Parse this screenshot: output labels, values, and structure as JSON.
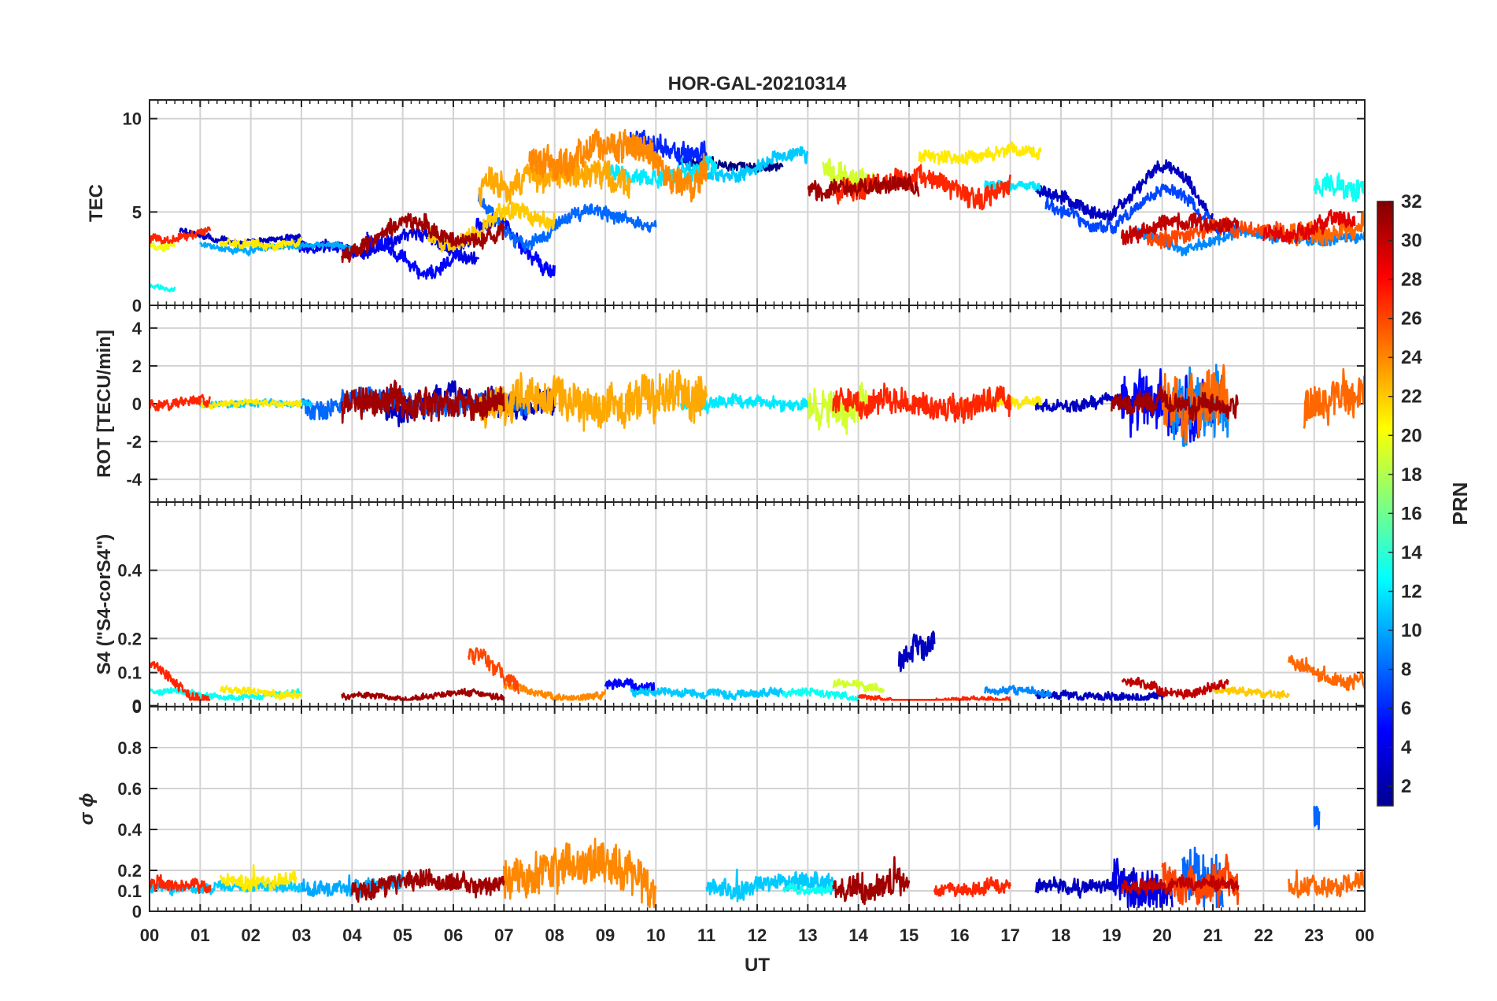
{
  "chart_data": {
    "type": "line",
    "title": "HOR-GAL-20210314",
    "xlabel": "UT",
    "x_ticks": [
      "00",
      "01",
      "02",
      "03",
      "04",
      "05",
      "06",
      "07",
      "08",
      "09",
      "10",
      "11",
      "12",
      "13",
      "14",
      "15",
      "16",
      "17",
      "18",
      "19",
      "20",
      "21",
      "22",
      "23",
      "00"
    ],
    "xlim": [
      0,
      24
    ],
    "grid": true,
    "colorbar": {
      "label": "PRN",
      "ticks": [
        "2",
        "4",
        "6",
        "8",
        "10",
        "12",
        "14",
        "16",
        "18",
        "20",
        "22",
        "24",
        "26",
        "28",
        "30",
        "32"
      ],
      "range": [
        1,
        32
      ],
      "colormap": "jet"
    },
    "panels": [
      {
        "ylabel": "TEC",
        "ylim": [
          0,
          11
        ],
        "yticks": [
          "0",
          "5",
          "10"
        ],
        "ytick_values": [
          0,
          5,
          10
        ],
        "series": [
          {
            "prn": 1,
            "hours": [
              10.5,
              12.5
            ],
            "level": 7.6,
            "amp": 0.6,
            "noise": 0.2
          },
          {
            "prn": 3,
            "hours": [
              0.6,
              3.0
            ],
            "level": 3.6,
            "amp": 0.4,
            "noise": 0.15
          },
          {
            "prn": 3,
            "hours": [
              17.5,
              21.0
            ],
            "level": 5.8,
            "amp": 1.8,
            "noise": 0.3
          },
          {
            "prn": 4,
            "hours": [
              2.7,
              6.5
            ],
            "level": 3.2,
            "amp": 0.9,
            "noise": 0.3
          },
          {
            "prn": 5,
            "hours": [
              4.3,
              8.0
            ],
            "level": 3.0,
            "amp": 1.6,
            "noise": 0.35
          },
          {
            "prn": 6,
            "hours": [
              9.5,
              11.0
            ],
            "level": 8.5,
            "amp": 1.0,
            "noise": 0.5
          },
          {
            "prn": 7,
            "hours": [
              17.7,
              21.5
            ],
            "level": 5.0,
            "amp": 1.2,
            "noise": 0.3
          },
          {
            "prn": 8,
            "hours": [
              6.5,
              10.0
            ],
            "level": 4.5,
            "amp": 1.5,
            "noise": 0.3
          },
          {
            "prn": 9,
            "hours": [
              19.5,
              24.0
            ],
            "level": 3.6,
            "amp": 0.5,
            "noise": 0.25
          },
          {
            "prn": 10,
            "hours": [
              1.0,
              4.0
            ],
            "level": 3.1,
            "amp": 0.5,
            "noise": 0.15
          },
          {
            "prn": 11,
            "hours": [
              10.5,
              13.0
            ],
            "level": 7.4,
            "amp": 0.8,
            "noise": 0.3
          },
          {
            "prn": 12,
            "hours": [
              9.0,
              11.2
            ],
            "level": 7.0,
            "amp": 0.8,
            "noise": 0.4
          },
          {
            "prn": 12,
            "hours": [
              16.5,
              17.6
            ],
            "level": 6.5,
            "amp": 0.3,
            "noise": 0.2
          },
          {
            "prn": 13,
            "hours": [
              23.0,
              24.0
            ],
            "level": 6.5,
            "amp": 1.0,
            "noise": 0.5
          },
          {
            "prn": 13,
            "hours": [
              0.0,
              0.5
            ],
            "level": 1.0,
            "amp": 0.4,
            "noise": 0.1
          },
          {
            "prn": 19,
            "hours": [
              13.3,
              14.3
            ],
            "level": 7.5,
            "amp": 1.5,
            "noise": 0.6
          },
          {
            "prn": 20,
            "hours": [
              0.0,
              0.5
            ],
            "level": 3.2,
            "amp": 0.3,
            "noise": 0.2
          },
          {
            "prn": 21,
            "hours": [
              1.4,
              3.0
            ],
            "level": 3.3,
            "amp": 0.3,
            "noise": 0.2
          },
          {
            "prn": 21,
            "hours": [
              15.2,
              17.6
            ],
            "level": 8.0,
            "amp": 0.4,
            "noise": 0.3
          },
          {
            "prn": 22,
            "hours": [
              5.5,
              8.0
            ],
            "level": 4.5,
            "amp": 1.5,
            "noise": 0.4
          },
          {
            "prn": 23,
            "hours": [
              6.5,
              9.5
            ],
            "level": 7.0,
            "amp": 1.5,
            "noise": 0.7
          },
          {
            "prn": 24,
            "hours": [
              7.5,
              11.0
            ],
            "level": 8.0,
            "amp": 1.5,
            "noise": 0.7
          },
          {
            "prn": 25,
            "hours": [
              22.5,
              24.0
            ],
            "level": 4.0,
            "amp": 0.8,
            "noise": 0.5
          },
          {
            "prn": 26,
            "hours": [
              19.7,
              22.5
            ],
            "level": 4.0,
            "amp": 0.8,
            "noise": 0.4
          },
          {
            "prn": 27,
            "hours": [
              0.0,
              1.2
            ],
            "level": 3.8,
            "amp": 1.0,
            "noise": 0.2
          },
          {
            "prn": 27,
            "hours": [
              13.5,
              17.0
            ],
            "level": 6.5,
            "amp": 1.2,
            "noise": 0.5
          },
          {
            "prn": 29,
            "hours": [
              22.0,
              23.8
            ],
            "level": 4.0,
            "amp": 0.8,
            "noise": 0.4
          },
          {
            "prn": 30,
            "hours": [
              19.2,
              21.5
            ],
            "level": 4.3,
            "amp": 0.7,
            "noise": 0.4
          },
          {
            "prn": 31,
            "hours": [
              3.8,
              7.0
            ],
            "level": 3.8,
            "amp": 1.0,
            "noise": 0.4
          },
          {
            "prn": 31,
            "hours": [
              13.0,
              15.2
            ],
            "level": 6.3,
            "amp": 0.7,
            "noise": 0.4
          }
        ]
      },
      {
        "ylabel": "ROT [TECU/min]",
        "ylim": [
          -5.2,
          5.2
        ],
        "yticks": [
          "-4",
          "-2",
          "0",
          "2",
          "4"
        ],
        "ytick_values": [
          -4,
          -2,
          0,
          2,
          4
        ],
        "series": [
          {
            "prn": 3,
            "hours": [
              4.5,
              8.0
            ],
            "level": 0,
            "amp": 0.4,
            "noise": 0.6
          },
          {
            "prn": 3,
            "hours": [
              17.5,
              19.5
            ],
            "level": 0,
            "amp": 0.2,
            "noise": 0.3
          },
          {
            "prn": 5,
            "hours": [
              19.2,
              21.0
            ],
            "level": 0,
            "amp": 0.5,
            "noise": 1.4
          },
          {
            "prn": 8,
            "hours": [
              3.0,
              7.5
            ],
            "level": 0,
            "amp": 0.3,
            "noise": 0.5
          },
          {
            "prn": 9,
            "hours": [
              20.2,
              21.3
            ],
            "level": 0,
            "amp": 0.5,
            "noise": 1.6
          },
          {
            "prn": 11,
            "hours": [
              1.0,
              3.2
            ],
            "level": 0,
            "amp": 0.1,
            "noise": 0.15
          },
          {
            "prn": 12,
            "hours": [
              10.5,
              13.0
            ],
            "level": 0,
            "amp": 0.2,
            "noise": 0.3
          },
          {
            "prn": 19,
            "hours": [
              13.0,
              14.2
            ],
            "level": 0,
            "amp": 0.4,
            "noise": 0.9
          },
          {
            "prn": 21,
            "hours": [
              1.0,
              3.0
            ],
            "level": 0,
            "amp": 0.1,
            "noise": 0.15
          },
          {
            "prn": 21,
            "hours": [
              16.0,
              17.6
            ],
            "level": 0,
            "amp": 0.1,
            "noise": 0.25
          },
          {
            "prn": 23,
            "hours": [
              6.5,
              11.0
            ],
            "level": 0,
            "amp": 0.5,
            "noise": 1.0
          },
          {
            "prn": 25,
            "hours": [
              20.0,
              21.3
            ],
            "level": 0,
            "amp": 0.5,
            "noise": 1.3
          },
          {
            "prn": 25,
            "hours": [
              22.8,
              24.0
            ],
            "level": 0,
            "amp": 0.5,
            "noise": 0.9
          },
          {
            "prn": 27,
            "hours": [
              0.0,
              1.2
            ],
            "level": 0,
            "amp": 0.2,
            "noise": 0.25
          },
          {
            "prn": 27,
            "hours": [
              13.5,
              17.0
            ],
            "level": 0,
            "amp": 0.3,
            "noise": 0.6
          },
          {
            "prn": 31,
            "hours": [
              3.8,
              7.0
            ],
            "level": 0,
            "amp": 0.4,
            "noise": 0.7
          },
          {
            "prn": 31,
            "hours": [
              19.0,
              21.5
            ],
            "level": 0,
            "amp": 0.3,
            "noise": 0.5
          }
        ]
      },
      {
        "ylabel": "S4 (\"S4-corS4\")",
        "ylim": [
          0,
          0.6
        ],
        "yticks": [
          "0",
          "0",
          "0.1",
          "0.2",
          "0.4"
        ],
        "ytick_values": [
          0,
          0.003,
          0.1,
          0.2,
          0.4
        ],
        "series": [
          {
            "prn": 3,
            "hours": [
              14.8,
              15.5
            ],
            "level": 0.12,
            "amp": 0.06,
            "noise": 0.03
          },
          {
            "prn": 3,
            "hours": [
              17.5,
              20.0
            ],
            "level": 0.03,
            "amp": 0.01,
            "noise": 0.01
          },
          {
            "prn": 5,
            "hours": [
              9.0,
              10.0
            ],
            "level": 0.05,
            "amp": 0.02,
            "noise": 0.015
          },
          {
            "prn": 9,
            "hours": [
              16.5,
              17.8
            ],
            "level": 0.04,
            "amp": 0.02,
            "noise": 0.01
          },
          {
            "prn": 11,
            "hours": [
              9.5,
              12.5
            ],
            "level": 0.04,
            "amp": 0.01,
            "noise": 0.01
          },
          {
            "prn": 13,
            "hours": [
              0.0,
              3.0
            ],
            "level": 0.035,
            "amp": 0.01,
            "noise": 0.008
          },
          {
            "prn": 13,
            "hours": [
              12.5,
              14.0
            ],
            "level": 0.035,
            "amp": 0.01,
            "noise": 0.01
          },
          {
            "prn": 19,
            "hours": [
              13.5,
              14.5
            ],
            "level": 0.05,
            "amp": 0.02,
            "noise": 0.01
          },
          {
            "prn": 21,
            "hours": [
              1.4,
              3.0
            ],
            "level": 0.04,
            "amp": 0.015,
            "noise": 0.01
          },
          {
            "prn": 22,
            "hours": [
              21.0,
              22.5
            ],
            "level": 0.04,
            "amp": 0.01,
            "noise": 0.01
          },
          {
            "prn": 24,
            "hours": [
              7.0,
              9.0
            ],
            "level": 0.04,
            "amp": 0.02,
            "noise": 0.01
          },
          {
            "prn": 25,
            "hours": [
              22.5,
              24.0
            ],
            "level": 0.09,
            "amp": 0.06,
            "noise": 0.02
          },
          {
            "prn": 26,
            "hours": [
              6.3,
              7.3
            ],
            "level": 0.1,
            "amp": 0.05,
            "noise": 0.02
          },
          {
            "prn": 27,
            "hours": [
              0.0,
              1.2
            ],
            "level": 0.06,
            "amp": 0.06,
            "noise": 0.015
          },
          {
            "prn": 27,
            "hours": [
              14.0,
              17.0
            ],
            "level": 0.02,
            "amp": 0.01,
            "noise": 0.006
          },
          {
            "prn": 30,
            "hours": [
              19.2,
              21.3
            ],
            "level": 0.06,
            "amp": 0.02,
            "noise": 0.012
          },
          {
            "prn": 31,
            "hours": [
              3.8,
              7.0
            ],
            "level": 0.03,
            "amp": 0.01,
            "noise": 0.008
          }
        ]
      },
      {
        "ylabel": "σ ϕ",
        "ylim": [
          0,
          1.0
        ],
        "yticks": [
          "0",
          "0.1",
          "0.2",
          "0.4",
          "0.6",
          "0.8"
        ],
        "ytick_values": [
          0,
          0.1,
          0.2,
          0.4,
          0.6,
          0.8
        ],
        "series": [
          {
            "prn": 3,
            "hours": [
              17.5,
              19.5
            ],
            "level": 0.12,
            "amp": 0.02,
            "noise": 0.03
          },
          {
            "prn": 4,
            "hours": [
              19.0,
              20.2
            ],
            "level": 0.15,
            "amp": 0.08,
            "noise": 0.1
          },
          {
            "prn": 8,
            "hours": [
              20.4,
              21.2
            ],
            "level": 0.2,
            "amp": 0.15,
            "noise": 0.12
          },
          {
            "prn": 8,
            "hours": [
              23.0,
              23.1
            ],
            "level": 0.45,
            "amp": 0.28,
            "noise": 0.05
          },
          {
            "prn": 10,
            "hours": [
              3.0,
              5.0
            ],
            "level": 0.12,
            "amp": 0.02,
            "noise": 0.03
          },
          {
            "prn": 11,
            "hours": [
              0.0,
              3.0
            ],
            "level": 0.12,
            "amp": 0.02,
            "noise": 0.02
          },
          {
            "prn": 11,
            "hours": [
              11.0,
              13.5
            ],
            "level": 0.13,
            "amp": 0.03,
            "noise": 0.04
          },
          {
            "prn": 13,
            "hours": [
              12.5,
              13.5
            ],
            "level": 0.12,
            "amp": 0.02,
            "noise": 0.02
          },
          {
            "prn": 21,
            "hours": [
              1.4,
              2.9
            ],
            "level": 0.15,
            "amp": 0.03,
            "noise": 0.03
          },
          {
            "prn": 24,
            "hours": [
              7.0,
              10.0
            ],
            "level": 0.2,
            "amp": 0.15,
            "noise": 0.09
          },
          {
            "prn": 25,
            "hours": [
              22.5,
              24.0
            ],
            "level": 0.13,
            "amp": 0.03,
            "noise": 0.04
          },
          {
            "prn": 26,
            "hours": [
              20.0,
              21.5
            ],
            "level": 0.15,
            "amp": 0.05,
            "noise": 0.08
          },
          {
            "prn": 27,
            "hours": [
              0.0,
              1.2
            ],
            "level": 0.13,
            "amp": 0.02,
            "noise": 0.03
          },
          {
            "prn": 27,
            "hours": [
              15.5,
              17.0
            ],
            "level": 0.11,
            "amp": 0.02,
            "noise": 0.03
          },
          {
            "prn": 30,
            "hours": [
              19.2,
              21.5
            ],
            "level": 0.13,
            "amp": 0.03,
            "noise": 0.03
          },
          {
            "prn": 31,
            "hours": [
              4.0,
              7.0
            ],
            "level": 0.13,
            "amp": 0.03,
            "noise": 0.04
          },
          {
            "prn": 31,
            "hours": [
              13.5,
              15.0
            ],
            "level": 0.12,
            "amp": 0.04,
            "noise": 0.05
          }
        ]
      }
    ]
  }
}
